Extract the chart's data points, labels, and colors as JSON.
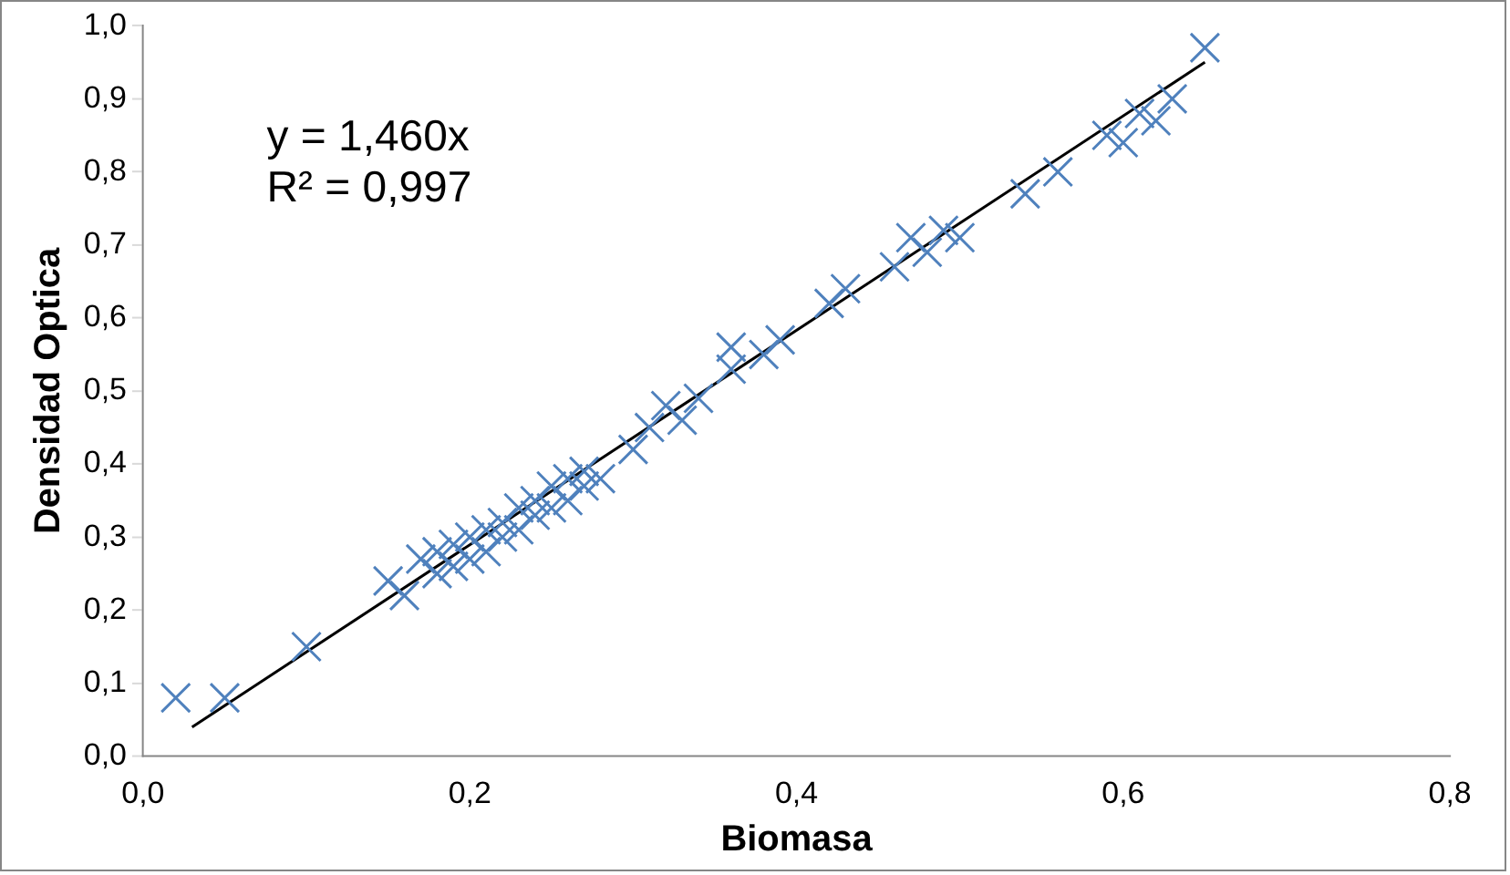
{
  "chart_data": {
    "type": "scatter",
    "xlabel": "Biomasa",
    "ylabel": "Densidad Optica",
    "marker": "cross",
    "grid": false,
    "legend": false,
    "xlim": [
      0,
      0.8
    ],
    "xticks": [
      {
        "value": 0,
        "label": "0,0"
      },
      {
        "value": 0.2,
        "label": "0,2"
      },
      {
        "value": 0.4,
        "label": "0,4"
      },
      {
        "value": 0.6,
        "label": "0,6"
      },
      {
        "value": 0.8,
        "label": "0,8"
      }
    ],
    "ylim": [
      0,
      1
    ],
    "yticks": [
      {
        "value": 0,
        "label": "0,0"
      },
      {
        "value": 0.1,
        "label": "0,1"
      },
      {
        "value": 0.2,
        "label": "0,2"
      },
      {
        "value": 0.3,
        "label": "0,3"
      },
      {
        "value": 0.4,
        "label": "0,4"
      },
      {
        "value": 0.5,
        "label": "0,5"
      },
      {
        "value": 0.6,
        "label": "0,6"
      },
      {
        "value": 0.7,
        "label": "0,7"
      },
      {
        "value": 0.8,
        "label": "0,8"
      },
      {
        "value": 0.9,
        "label": "0,9"
      },
      {
        "value": 1,
        "label": "1,0"
      }
    ],
    "annotations": [
      "y = 1,460x",
      "R² = 0,997"
    ],
    "series": [
      {
        "type": "scatter",
        "color": "#4f81bd",
        "x": [
          0.02,
          0.05,
          0.1,
          0.15,
          0.16,
          0.17,
          0.18,
          0.18,
          0.19,
          0.19,
          0.2,
          0.2,
          0.21,
          0.21,
          0.22,
          0.22,
          0.23,
          0.23,
          0.24,
          0.24,
          0.25,
          0.25,
          0.26,
          0.26,
          0.27,
          0.27,
          0.28,
          0.3,
          0.31,
          0.32,
          0.33,
          0.34,
          0.36,
          0.36,
          0.38,
          0.39,
          0.42,
          0.43,
          0.46,
          0.47,
          0.48,
          0.49,
          0.5,
          0.54,
          0.56,
          0.59,
          0.6,
          0.61,
          0.62,
          0.63,
          0.65
        ],
        "values": [
          0.08,
          0.08,
          0.15,
          0.24,
          0.22,
          0.27,
          0.25,
          0.28,
          0.29,
          0.26,
          0.3,
          0.27,
          0.31,
          0.28,
          0.32,
          0.3,
          0.34,
          0.31,
          0.35,
          0.33,
          0.37,
          0.34,
          0.38,
          0.35,
          0.39,
          0.37,
          0.38,
          0.42,
          0.45,
          0.48,
          0.46,
          0.49,
          0.53,
          0.56,
          0.55,
          0.57,
          0.62,
          0.64,
          0.67,
          0.71,
          0.69,
          0.72,
          0.71,
          0.77,
          0.8,
          0.85,
          0.84,
          0.88,
          0.87,
          0.9,
          0.97
        ]
      },
      {
        "type": "line",
        "color": "#000000",
        "marker": "none",
        "x": [
          0.03,
          0.65
        ],
        "values": [
          0.04,
          0.95
        ]
      }
    ]
  }
}
